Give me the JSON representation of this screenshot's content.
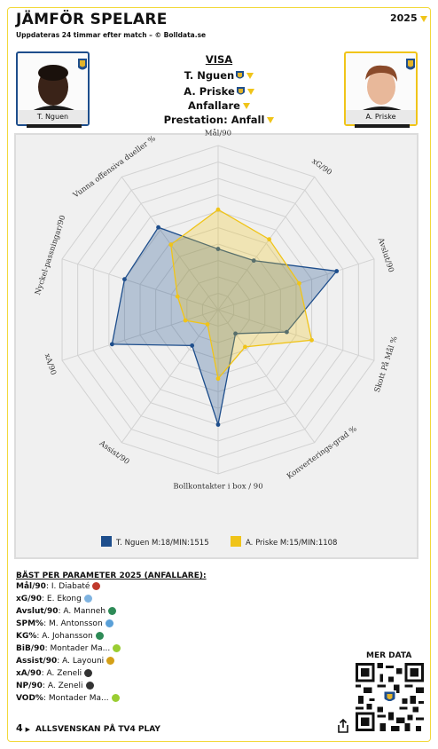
{
  "header": {
    "title": "JÄMFÖR SPELARE",
    "subtitle": "Uppdateras 24 timmar efter match – © Bolldata.se",
    "year": "2025"
  },
  "players": [
    {
      "name": "T. Nguen",
      "legend": "T. Nguen M:18/MIN:1515",
      "color": "#1e4e8c"
    },
    {
      "name": "A. Priske",
      "legend": "A. Priske M:15/MIN:1108",
      "color": "#f0c419"
    }
  ],
  "visa": {
    "heading": "VISA",
    "player1": "T. Nguen",
    "player2": "A. Priske",
    "position": "Anfallare",
    "mode": "Prestation: Anfall"
  },
  "chart_data": {
    "type": "radar",
    "axes": [
      "Mål/90",
      "xG/90",
      "Avslut/90",
      "Skott På Mål %",
      "Konverterings-grad %",
      "Bollkontakter i box / 90",
      "Assist/90",
      "xA/90",
      "Nyckel-passningar/90",
      "Vunna offensiva dueller %"
    ],
    "range": [
      0,
      10
    ],
    "series": [
      {
        "name": "T. Nguen M:18/MIN:1515",
        "values": [
          3.7,
          3.7,
          7.6,
          4.4,
          1.8,
          7.0,
          2.7,
          6.8,
          6.0,
          6.2
        ]
      },
      {
        "name": "A. Priske M:15/MIN:1108",
        "values": [
          6.1,
          5.3,
          5.2,
          6.0,
          2.8,
          4.2,
          1.1,
          2.1,
          2.6,
          4.9
        ]
      }
    ]
  },
  "best": {
    "heading": "BÄST PER PARAMETER 2025 (ANFALLARE):",
    "rows": [
      {
        "label": "Mål/90",
        "player": "I. Diabaté",
        "color": "#c0392b"
      },
      {
        "label": "xG/90",
        "player": "E. Ekong",
        "color": "#7fb3e0"
      },
      {
        "label": "Avslut/90",
        "player": "A. Manneh",
        "color": "#2e8b57"
      },
      {
        "label": "SPM%",
        "player": "M. Antonsson",
        "color": "#5aa0d8"
      },
      {
        "label": "KG%",
        "player": "A. Johansson",
        "color": "#2e8b57"
      },
      {
        "label": "BiB/90",
        "player": "Montader Ma...",
        "color": "#9acd32"
      },
      {
        "label": "Assist/90",
        "player": "A. Layouni",
        "color": "#d4a017"
      },
      {
        "label": "xA/90",
        "player": "A. Zeneli",
        "color": "#333333"
      },
      {
        "label": "NP/90",
        "player": "A. Zeneli",
        "color": "#333333"
      },
      {
        "label": "VOD%",
        "player": "Montader Ma...",
        "color": "#9acd32"
      }
    ]
  },
  "footer": {
    "mer_data": "MER DATA",
    "tv": "ALLSVENSKAN PÅ TV4 PLAY"
  }
}
